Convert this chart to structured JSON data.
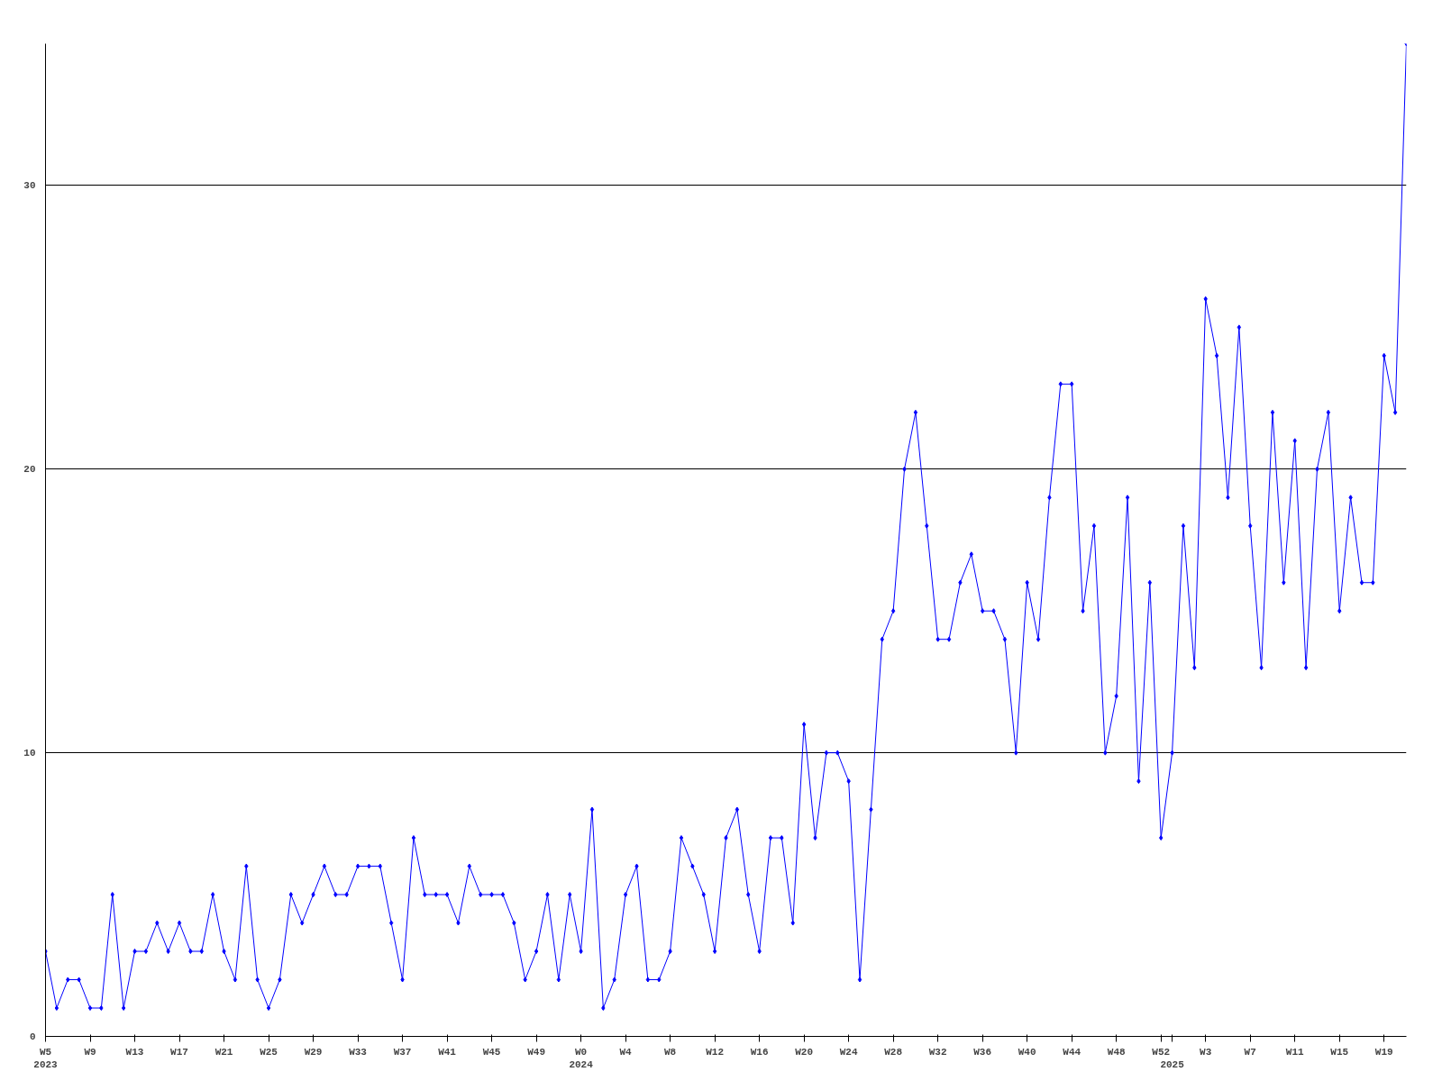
{
  "chart_data": {
    "type": "line",
    "categories": [
      "W5\n2023",
      null,
      null,
      null,
      "W9",
      null,
      null,
      null,
      "W13",
      null,
      null,
      null,
      "W17",
      null,
      null,
      null,
      "W21",
      null,
      null,
      null,
      "W25",
      null,
      null,
      null,
      "W29",
      null,
      null,
      null,
      "W33",
      null,
      null,
      null,
      "W37",
      null,
      null,
      null,
      "W41",
      null,
      null,
      null,
      "W45",
      null,
      null,
      null,
      "W49",
      null,
      null,
      null,
      "W0\n2024",
      null,
      null,
      null,
      "W4",
      null,
      null,
      null,
      "W8",
      null,
      null,
      null,
      "W12",
      null,
      null,
      null,
      "W16",
      null,
      null,
      null,
      "W20",
      null,
      null,
      null,
      "W24",
      null,
      null,
      null,
      "W28",
      null,
      null,
      null,
      "W32",
      null,
      null,
      null,
      "W36",
      null,
      null,
      null,
      "W40",
      null,
      null,
      null,
      "W44",
      null,
      null,
      null,
      "W48",
      null,
      null,
      null,
      "W52",
      "\n2025",
      null,
      null,
      "W3",
      null,
      null,
      null,
      "W7",
      null,
      null,
      null,
      "W11",
      null,
      null,
      null,
      "W15",
      null,
      null,
      null,
      "W19",
      null,
      null
    ],
    "series": [
      {
        "color": "#0000ff",
        "values": [
          3,
          1,
          2,
          2,
          1,
          1,
          5,
          1,
          3,
          3,
          4,
          3,
          4,
          3,
          3,
          5,
          3,
          2,
          6,
          2,
          1,
          2,
          5,
          4,
          5,
          6,
          5,
          5,
          6,
          6,
          6,
          4,
          2,
          7,
          5,
          5,
          5,
          4,
          6,
          5,
          5,
          5,
          4,
          2,
          3,
          5,
          2,
          5,
          3,
          8,
          1,
          2,
          5,
          6,
          2,
          2,
          3,
          7,
          6,
          5,
          3,
          7,
          8,
          5,
          3,
          7,
          7,
          4,
          11,
          7,
          10,
          10,
          9,
          2,
          8,
          14,
          15,
          20,
          22,
          18,
          14,
          14,
          16,
          17,
          15,
          15,
          14,
          10,
          16,
          14,
          19,
          23,
          23,
          15,
          18,
          10,
          12,
          19,
          9,
          16,
          7,
          10,
          18,
          13,
          26,
          24,
          19,
          25,
          18,
          13,
          22,
          16,
          21,
          13,
          20,
          22,
          15,
          19,
          16,
          16,
          24,
          22,
          35
        ]
      }
    ],
    "ylim": [
      0,
      35
    ],
    "yticks": [
      0,
      10,
      20,
      30
    ],
    "grid": "y",
    "marker": "diamond",
    "line_style": "solid"
  }
}
